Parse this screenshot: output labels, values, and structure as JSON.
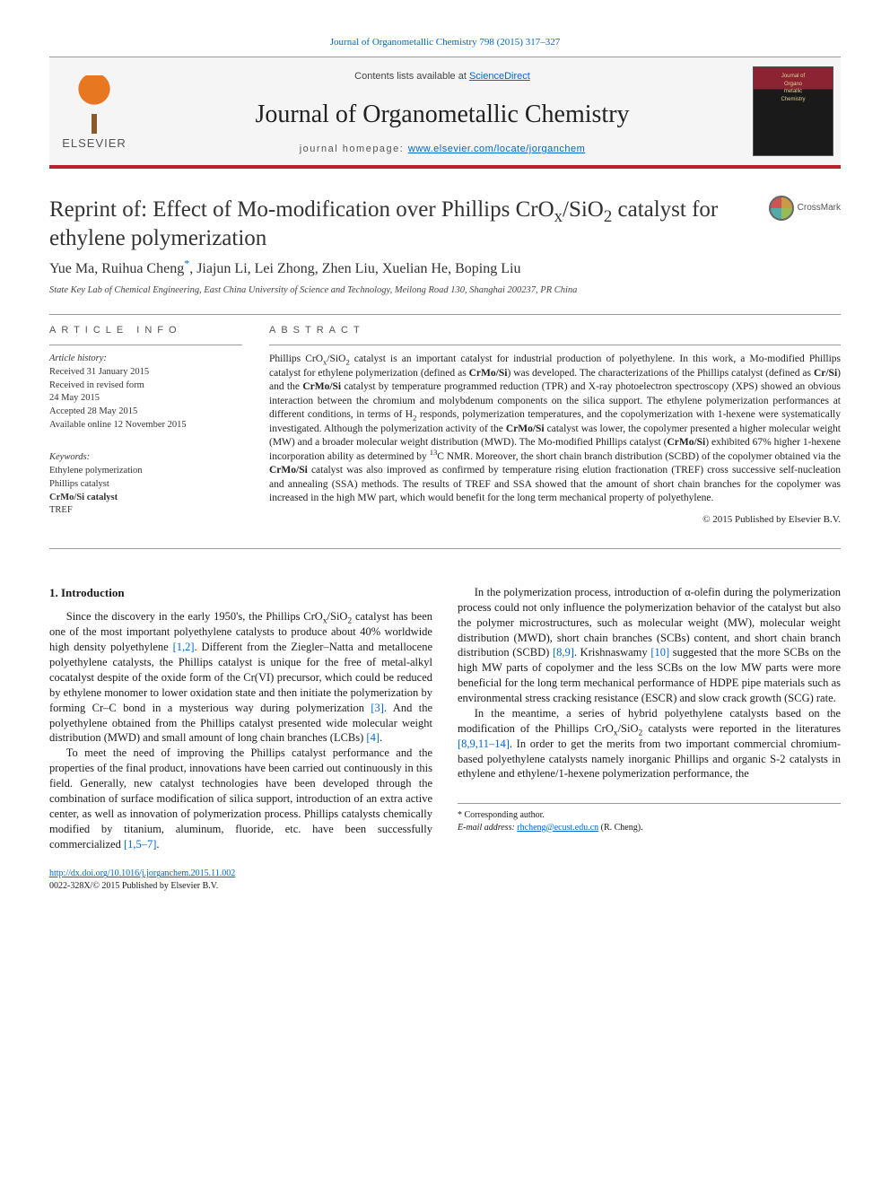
{
  "colors": {
    "accent_red": "#b8202f",
    "link_blue": "#0066cc",
    "elsevier_orange": "#e87722",
    "text_body": "#1a1a1a",
    "text_muted": "#555555",
    "rule_gray": "#999999",
    "cover_maroon": "#8b2332",
    "background": "#ffffff"
  },
  "typography": {
    "body_font": "Georgia, 'Times New Roman', serif",
    "sans_font": "Arial, sans-serif",
    "title_fontsize": 25,
    "journal_fontsize": 28,
    "body_fontsize": 12.5,
    "abstract_fontsize": 11.5,
    "meta_fontsize": 10.5
  },
  "top_citation": "Journal of Organometallic Chemistry 798 (2015) 317–327",
  "header": {
    "publisher_name": "ELSEVIER",
    "contents_prefix": "Contents lists available at ",
    "contents_link": "ScienceDirect",
    "journal_name": "Journal of Organometallic Chemistry",
    "homepage_prefix": "journal homepage: ",
    "homepage_url": "www.elsevier.com/locate/jorganchem",
    "cover_title_line1": "Journal of",
    "cover_title_line2": "Organo",
    "cover_title_line3": "metallic",
    "cover_title_line4": "Chemistry"
  },
  "crossmark_label": "CrossMark",
  "title_html": "Reprint of: Effect of Mo-modification over Phillips CrO<sub>x</sub>/SiO<sub>2</sub> catalyst for ethylene polymerization",
  "authors_html": "Yue Ma, Ruihua Cheng<sup class=\"corr\">*</sup>, Jiajun Li, Lei Zhong, Zhen Liu, Xuelian He, Boping Liu",
  "affiliation": "State Key Lab of Chemical Engineering, East China University of Science and Technology, Meilong Road 130, Shanghai 200237, PR China",
  "article_info": {
    "heading": "ARTICLE INFO",
    "history_label": "Article history:",
    "history_lines": [
      "Received 31 January 2015",
      "Received in revised form",
      "24 May 2015",
      "Accepted 28 May 2015",
      "Available online 12 November 2015"
    ],
    "keywords_label": "Keywords:",
    "keywords": [
      "Ethylene polymerization",
      "Phillips catalyst",
      "CrMo/Si catalyst",
      "TREF"
    ]
  },
  "abstract": {
    "heading": "ABSTRACT",
    "body_html": "Phillips CrO<sub>x</sub>/SiO<sub>2</sub> catalyst is an important catalyst for industrial production of polyethylene. In this work, a Mo-modified Phillips catalyst for ethylene polymerization (defined as <b>CrMo/Si</b>) was developed. The characterizations of the Phillips catalyst (defined as <b>Cr/Si</b>) and the <b>CrMo/Si</b> catalyst by temperature programmed reduction (TPR) and X-ray photoelectron spectroscopy (XPS) showed an obvious interaction between the chromium and molybdenum components on the silica support. The ethylene polymerization performances at different conditions, in terms of H<sub>2</sub> responds, polymerization temperatures, and the copolymerization with 1-hexene were systematically investigated. Although the polymerization activity of the <b>CrMo/Si</b> catalyst was lower, the copolymer presented a higher molecular weight (MW) and a broader molecular weight distribution (MWD). The Mo-modified Phillips catalyst (<b>CrMo/Si</b>) exhibited 67% higher 1-hexene incorporation ability as determined by <sup>13</sup>C NMR. Moreover, the short chain branch distribution (SCBD) of the copolymer obtained via the <b>CrMo/Si</b> catalyst was also improved as confirmed by temperature rising elution fractionation (TREF) cross successive self-nucleation and annealing (SSA) methods. The results of TREF and SSA showed that the amount of short chain branches for the copolymer was increased in the high MW part, which would benefit for the long term mechanical property of polyethylene.",
    "copyright": "© 2015 Published by Elsevier B.V."
  },
  "section1_heading": "1. Introduction",
  "body_paragraphs_html": [
    "Since the discovery in the early 1950's, the Phillips CrO<sub>x</sub>/SiO<sub>2</sub> catalyst has been one of the most important polyethylene catalysts to produce about 40% worldwide high density polyethylene <span class=\"ref-link\">[1,2]</span>. Different from the Ziegler–Natta and metallocene polyethylene catalysts, the Phillips catalyst is unique for the free of metal-alkyl cocatalyst despite of the oxide form of the Cr(VI) precursor, which could be reduced by ethylene monomer to lower oxidation state and then initiate the polymerization by forming Cr–C bond in a mysterious way during polymerization <span class=\"ref-link\">[3]</span>. And the polyethylene obtained from the Phillips catalyst presented wide molecular weight distribution (MWD) and small amount of long chain branches (LCBs) <span class=\"ref-link\">[4]</span>.",
    "To meet the need of improving the Phillips catalyst performance and the properties of the final product, innovations have been carried out continuously in this field. Generally, new catalyst technologies have been developed through the combination of surface modification of silica support, introduction of an extra active center, as well as innovation of polymerization process. Phillips catalysts chemically modified by titanium, aluminum, fluoride, etc. have been successfully commercialized <span class=\"ref-link\">[1,5–7]</span>.",
    "In the polymerization process, introduction of α-olefin during the polymerization process could not only influence the polymerization behavior of the catalyst but also the polymer microstructures, such as molecular weight (MW), molecular weight distribution (MWD), short chain branches (SCBs) content, and short chain branch distribution (SCBD) <span class=\"ref-link\">[8,9]</span>. Krishnaswamy <span class=\"ref-link\">[10]</span> suggested that the more SCBs on the high MW parts of copolymer and the less SCBs on the low MW parts were more beneficial for the long term mechanical performance of HDPE pipe materials such as environmental stress cracking resistance (ESCR) and slow crack growth (SCG) rate.",
    "In the meantime, a series of hybrid polyethylene catalysts based on the modification of the Phillips CrO<sub>x</sub>/SiO<sub>2</sub> catalysts were reported in the literatures <span class=\"ref-link\">[8,9,11–14]</span>. In order to get the merits from two important commercial chromium-based polyethylene catalysts namely inorganic Phillips and organic S-2 catalysts in ethylene and ethylene/1-hexene polymerization performance, the"
  ],
  "footnotes": {
    "corr_label": "* Corresponding author.",
    "email_label": "E-mail address: ",
    "email": "rhcheng@ecust.edu.cn",
    "email_who": " (R. Cheng)."
  },
  "doi_block": {
    "doi_url": "http://dx.doi.org/10.1016/j.jorganchem.2015.11.002",
    "issn_line": "0022-328X/© 2015 Published by Elsevier B.V."
  }
}
